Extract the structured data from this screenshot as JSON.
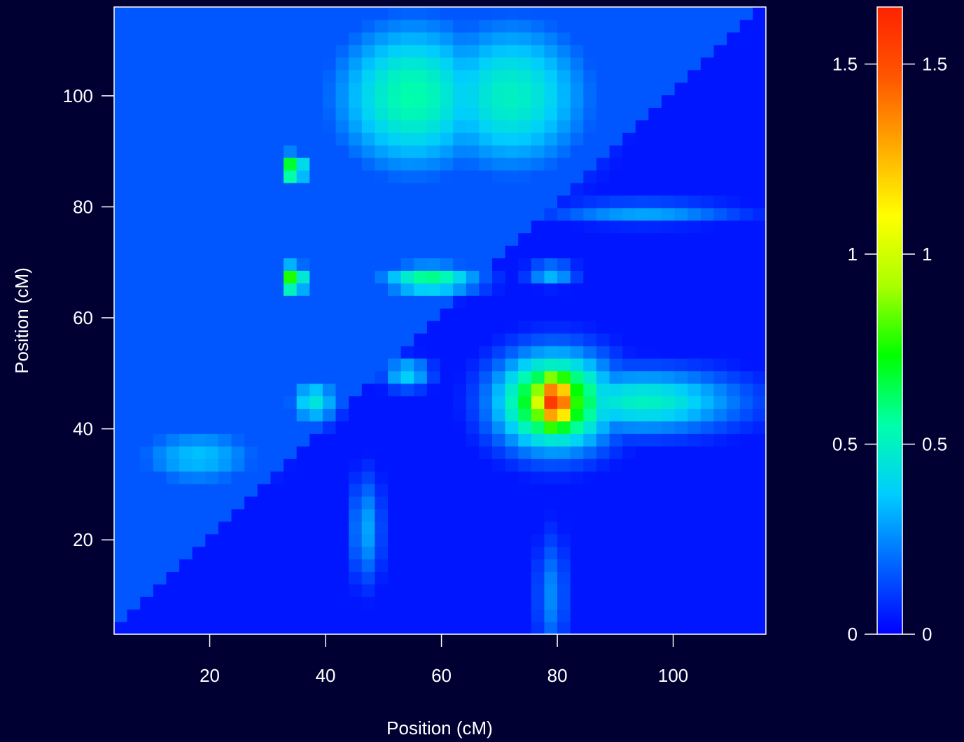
{
  "chart_data": {
    "type": "heatmap",
    "title": "",
    "xlabel": "Position (cM)",
    "ylabel": "Position (cM)",
    "xlim": [
      3.5,
      116
    ],
    "ylim": [
      3,
      116
    ],
    "x_ticks": [
      20,
      40,
      60,
      80,
      100
    ],
    "y_ticks": [
      20,
      40,
      60,
      80,
      100
    ],
    "grid": false,
    "legend": "right",
    "colorbar": {
      "range": [
        0,
        1.65
      ],
      "ticks_left": [
        "0",
        "0.5",
        "1",
        "1.5"
      ],
      "ticks_right": [
        "0",
        "0.5",
        "1",
        "1.5"
      ],
      "tick_values": [
        0,
        0.5,
        1,
        1.5
      ],
      "colors": [
        "#0000ff",
        "#0064ff",
        "#00ccff",
        "#00ffaa",
        "#00ff00",
        "#aaff00",
        "#ffff00",
        "#ffaa00",
        "#ff5500",
        "#ff2200"
      ]
    },
    "features": [
      {
        "x": 79.5,
        "y": 45,
        "v": 1.6,
        "sx": 3,
        "sy": 4
      },
      {
        "x": 79.5,
        "y": 45,
        "v": 0.9,
        "sx": 7,
        "sy": 6
      },
      {
        "x": 34.5,
        "y": 67,
        "v": 0.85,
        "sx": 1.5,
        "sy": 2
      },
      {
        "x": 34.5,
        "y": 87,
        "v": 0.8,
        "sx": 1.5,
        "sy": 2
      },
      {
        "x": 55,
        "y": 100,
        "v": 0.55,
        "sx": 10,
        "sy": 10
      },
      {
        "x": 72,
        "y": 100,
        "v": 0.5,
        "sx": 10,
        "sy": 10
      },
      {
        "x": 58,
        "y": 67,
        "v": 0.6,
        "sx": 6,
        "sy": 2
      },
      {
        "x": 95,
        "y": 45,
        "v": 0.5,
        "sx": 12,
        "sy": 4
      },
      {
        "x": 18,
        "y": 35,
        "v": 0.35,
        "sx": 8,
        "sy": 4
      },
      {
        "x": 47,
        "y": 22,
        "v": 0.3,
        "sx": 2,
        "sy": 7
      },
      {
        "x": 54,
        "y": 50,
        "v": 0.4,
        "sx": 3,
        "sy": 2
      },
      {
        "x": 79,
        "y": 68,
        "v": 0.35,
        "sx": 3,
        "sy": 1.5
      },
      {
        "x": 95,
        "y": 79,
        "v": 0.3,
        "sx": 12,
        "sy": 1.5
      },
      {
        "x": 79,
        "y": 10,
        "v": 0.25,
        "sx": 2,
        "sy": 8
      },
      {
        "x": 38,
        "y": 45,
        "v": 0.45,
        "sx": 3,
        "sy": 3
      }
    ]
  }
}
